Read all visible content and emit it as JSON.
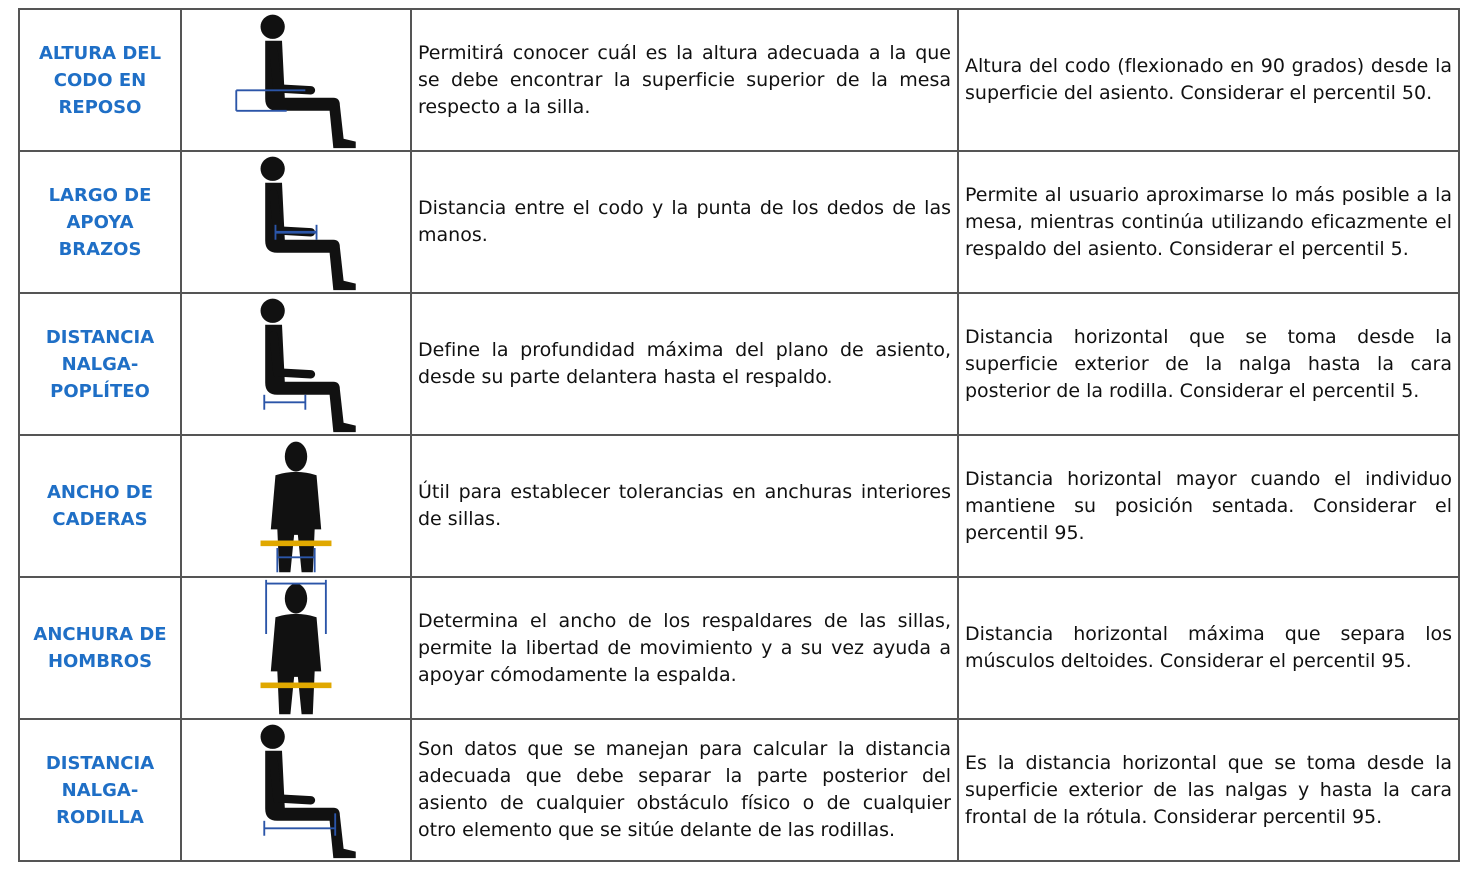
{
  "table": {
    "rows": [
      [
        "ALTURA DEL CODO EN REPOSO",
        "Permitirá conocer cuál es la altura adecuada a la que se debe encontrar la superficie superior de la mesa respecto a la silla.",
        "Altura del codo (flexionado en 90 grados) desde la superficie del asiento. Considerar el percentil 50."
      ],
      [
        "LARGO DE APOYA BRAZOS",
        "Distancia entre el codo y la punta de los dedos de las manos.",
        "Permite al usuario aproximarse lo más posible a la mesa, mientras continúa utilizando eficazmente el respaldo del asiento. Considerar el percentil 5."
      ],
      [
        "DISTANCIA NALGA-POPLÍTEO",
        "Define la profundidad máxima del plano de asiento, desde su parte delantera hasta el respaldo.",
        "Distancia horizontal que se toma desde la superficie exterior de la nalga hasta la cara posterior de la rodilla. Considerar el percentil 5."
      ],
      [
        "ANCHO DE CADERAS",
        "Útil para establecer tolerancias en anchuras interiores de sillas.",
        "Distancia horizontal mayor cuando el individuo mantiene su posición sentada. Considerar el percentil 95."
      ],
      [
        "ANCHURA DE HOMBROS",
        "Determina el ancho de los respaldares de las sillas, permite la libertad de movimiento y a su vez ayuda a apoyar cómodamente la espalda.",
        "Distancia horizontal máxima que separa los músculos deltoides. Considerar el percentil 95."
      ],
      [
        "DISTANCIA NALGA-RODILLA",
        "Son datos que se manejan para calcular la distancia adecuada que debe separar la parte posterior del asiento de cualquier obstáculo físico o de cualquier otro elemento que se sitúe delante de las rodillas.",
        "Es la distancia horizontal que se toma desde la superficie exterior de las nalgas y hasta la cara frontal de la rótula. Considerar percentil 95."
      ]
    ]
  }
}
